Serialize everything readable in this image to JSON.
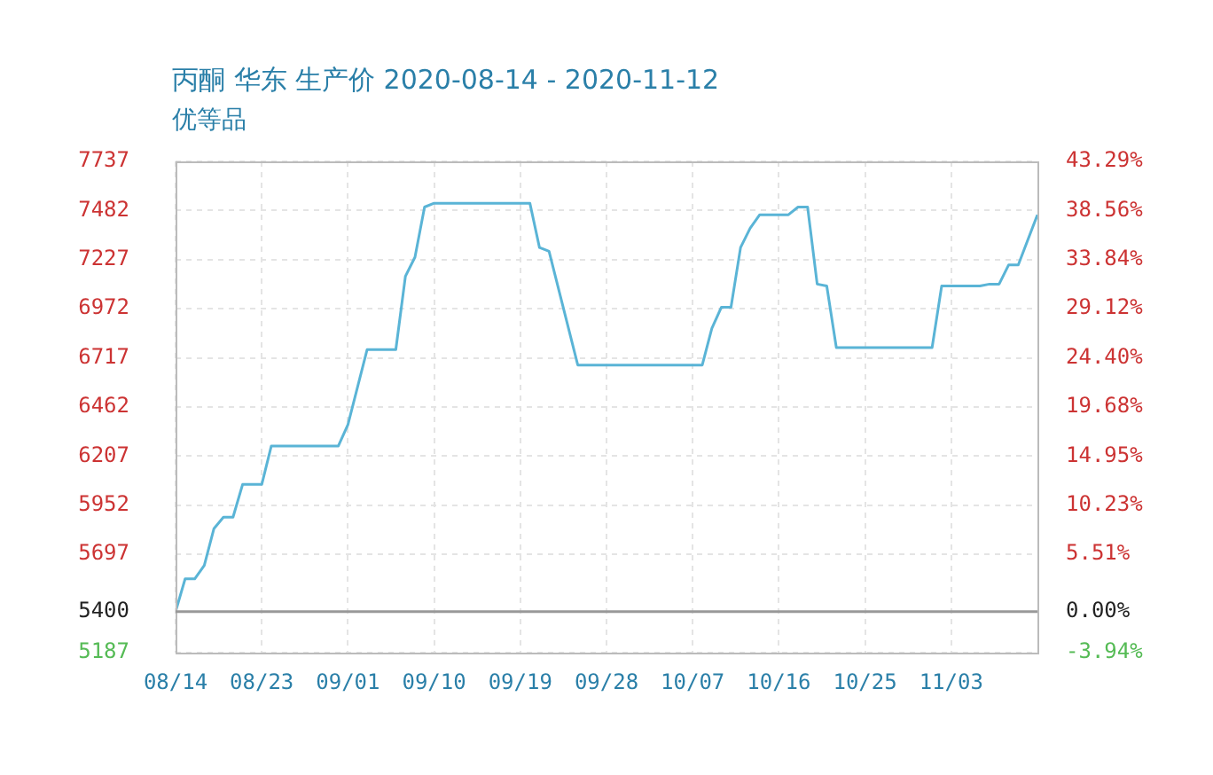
{
  "chart_data": {
    "type": "line",
    "title": "丙酮 华东 生产价 2020-08-14 - 2020-11-12",
    "subtitle": "优等品",
    "x": [
      "--08-14",
      "--08-15",
      "--08-16",
      "--08-17",
      "--08-18",
      "--08-19",
      "--08-20",
      "--08-21",
      "--08-23",
      "--08-24",
      "--08-31",
      "--09-01",
      "--09-03",
      "--09-06",
      "--09-07",
      "--09-08",
      "--09-09",
      "--09-10",
      "--09-20",
      "--09-21",
      "--09-22",
      "--09-25",
      "--10-08",
      "--10-09",
      "--10-10",
      "--10-11",
      "--10-12",
      "--10-13",
      "--10-14",
      "--10-17",
      "--10-18",
      "--10-19",
      "--10-20",
      "--10-21",
      "--10-22",
      "--11-01",
      "--11-02",
      "--11-06",
      "--11-07",
      "--11-08",
      "--11-09",
      "--11-10",
      "--11-12"
    ],
    "series": [
      {
        "color": "#5ab4d6",
        "values": [
          5400,
          5570,
          5570,
          5640,
          5830,
          5890,
          5890,
          6060,
          6060,
          6260,
          6260,
          6370,
          6760,
          6760,
          7140,
          7240,
          7500,
          7520,
          7520,
          7290,
          7270,
          6680,
          6680,
          6870,
          6980,
          6980,
          7290,
          7390,
          7460,
          7460,
          7500,
          7500,
          7100,
          7090,
          6770,
          6770,
          7090,
          7090,
          7100,
          7100,
          7200,
          7200,
          7460
        ]
      }
    ],
    "xlim": [
      "--08-14",
      "--11-12"
    ],
    "xticks": [
      {
        "value": "--08-14",
        "label": "08/14"
      },
      {
        "value": "--08-23",
        "label": "08/23"
      },
      {
        "value": "--09-01",
        "label": "09/01"
      },
      {
        "value": "--09-10",
        "label": "09/10"
      },
      {
        "value": "--09-19",
        "label": "09/19"
      },
      {
        "value": "--09-28",
        "label": "09/28"
      },
      {
        "value": "--10-07",
        "label": "10/07"
      },
      {
        "value": "--10-16",
        "label": "10/16"
      },
      {
        "value": "--10-25",
        "label": "10/25"
      },
      {
        "value": "--11-03",
        "label": "11/03"
      }
    ],
    "ylim": [
      5187,
      7737
    ],
    "yticks": [
      5187,
      5400,
      5697,
      5952,
      6207,
      6462,
      6717,
      6972,
      7227,
      7482,
      7737
    ],
    "y2lim": [
      -3.94,
      43.29
    ],
    "y2ticks": [
      {
        "value": -3.94,
        "label": "-3.94%"
      },
      {
        "value": 0,
        "label": "0.00%"
      },
      {
        "value": 5.51,
        "label": "5.51%"
      },
      {
        "value": 10.23,
        "label": "10.23%"
      },
      {
        "value": 14.95,
        "label": "14.95%"
      },
      {
        "value": 19.68,
        "label": "19.68%"
      },
      {
        "value": 24.4,
        "label": "24.40%"
      },
      {
        "value": 29.12,
        "label": "29.12%"
      },
      {
        "value": 33.84,
        "label": "33.84%"
      },
      {
        "value": 38.56,
        "label": "38.56%"
      },
      {
        "value": 43.29,
        "label": "43.29%"
      }
    ],
    "ref_lines": [
      {
        "axis": "y",
        "value": 5400,
        "color": "#999999"
      }
    ],
    "grid": true,
    "legend": false,
    "marker": "none",
    "line_style": "solid"
  }
}
